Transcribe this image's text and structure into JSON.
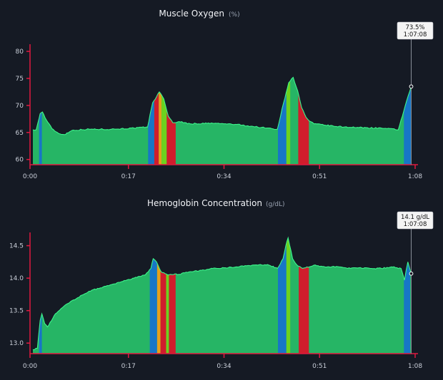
{
  "colors": {
    "background": "#151a24",
    "axis": "#e0193f",
    "fill_green": "#26b565",
    "line_green": "#3df58c",
    "band_blue": "#1776c7",
    "band_red": "#d01d2c",
    "band_orange": "#e6a01a",
    "band_lime": "#6dd21e",
    "tooltip_bg": "#f4f4f4",
    "cursor_line": "#8a8f99"
  },
  "chart_data": [
    {
      "type": "area",
      "title": "Muscle Oxygen",
      "unit": "(%)",
      "x_unit": "minutes",
      "xlim": [
        0,
        68
      ],
      "ylim": [
        59.3,
        80.8
      ],
      "x_ticks": [
        {
          "value": 0,
          "label": "0:00"
        },
        {
          "value": 17,
          "label": "0:17"
        },
        {
          "value": 34,
          "label": "0:34"
        },
        {
          "value": 51,
          "label": "0:51"
        },
        {
          "value": 68,
          "label": "1:08"
        }
      ],
      "y_ticks": [
        {
          "value": 60,
          "label": "60"
        },
        {
          "value": 65,
          "label": "65"
        },
        {
          "value": 70,
          "label": "70"
        },
        {
          "value": 75,
          "label": "75"
        },
        {
          "value": 80,
          "label": "80"
        }
      ],
      "x": [
        0,
        0.6,
        1.3,
        1.7,
        2.4,
        3.4,
        4.6,
        5.6,
        7,
        10,
        14,
        18,
        20.4,
        21.3,
        22.5,
        23.3,
        24.1,
        24.9,
        26,
        28,
        32,
        36,
        40,
        43.5,
        44.6,
        45.5,
        46.3,
        47.1,
        47.8,
        48.6,
        49.2,
        50,
        54,
        58,
        62,
        65,
        66.2,
        67.3
      ],
      "values": [
        65.5,
        65.5,
        68.5,
        68.8,
        67.3,
        65.7,
        64.8,
        64.6,
        65.4,
        65.6,
        65.6,
        65.8,
        66,
        70.5,
        72.5,
        71.2,
        68,
        66.8,
        67,
        66.6,
        66.7,
        66.5,
        66,
        65.6,
        70.5,
        74.2,
        75.2,
        72.7,
        69.6,
        67.8,
        67.1,
        66.6,
        66.1,
        65.9,
        65.8,
        65.5,
        69.8,
        73.5
      ],
      "bands": [
        {
          "x0": 1.1,
          "x1": 1.6,
          "color": "blue"
        },
        {
          "x0": 20.5,
          "x1": 21.6,
          "color": "blue"
        },
        {
          "x0": 21.6,
          "x1": 22.4,
          "color": "red"
        },
        {
          "x0": 22.4,
          "x1": 22.9,
          "color": "orange"
        },
        {
          "x0": 22.9,
          "x1": 23.8,
          "color": "lime"
        },
        {
          "x0": 23.8,
          "x1": 25.4,
          "color": "red"
        },
        {
          "x0": 43.6,
          "x1": 45.1,
          "color": "blue"
        },
        {
          "x0": 45.1,
          "x1": 45.8,
          "color": "lime"
        },
        {
          "x0": 45.8,
          "x1": 47.2,
          "color": "green"
        },
        {
          "x0": 47.2,
          "x1": 49.1,
          "color": "red"
        },
        {
          "x0": 66.0,
          "x1": 67.3,
          "color": "blue"
        }
      ],
      "cursor": {
        "x": 67.3,
        "y": 73.5,
        "value_label": "73.5%",
        "time_label": "1:07:08"
      }
    },
    {
      "type": "area",
      "title": "Hemoglobin Concentration",
      "unit": "(g/dL)",
      "x_unit": "minutes",
      "xlim": [
        0,
        68
      ],
      "ylim": [
        12.86,
        14.66
      ],
      "x_ticks": [
        {
          "value": 0,
          "label": "0:00"
        },
        {
          "value": 17,
          "label": "0:17"
        },
        {
          "value": 34,
          "label": "0:34"
        },
        {
          "value": 51,
          "label": "0:51"
        },
        {
          "value": 68,
          "label": "1:08"
        }
      ],
      "y_ticks": [
        {
          "value": 13.0,
          "label": "13.0"
        },
        {
          "value": 13.5,
          "label": "13.5"
        },
        {
          "value": 14.0,
          "label": "14.0"
        },
        {
          "value": 14.5,
          "label": "14.5"
        }
      ],
      "x": [
        0,
        0.8,
        1.3,
        1.6,
        2.1,
        2.6,
        4,
        6,
        8,
        10,
        12,
        14,
        16,
        18,
        20,
        21,
        21.4,
        22,
        22.8,
        24,
        26,
        28,
        30,
        32,
        34,
        36,
        38,
        40,
        42,
        43.5,
        44.5,
        45,
        45.4,
        46.2,
        47,
        48,
        50,
        52,
        54,
        56,
        58,
        60,
        62,
        64,
        65.5,
        66.1,
        66.7,
        67.3
      ],
      "values": [
        12.9,
        12.92,
        13.35,
        13.45,
        13.3,
        13.25,
        13.45,
        13.6,
        13.7,
        13.8,
        13.85,
        13.9,
        13.95,
        14.0,
        14.05,
        14.15,
        14.3,
        14.25,
        14.1,
        14.05,
        14.06,
        14.1,
        14.12,
        14.15,
        14.16,
        14.17,
        14.19,
        14.2,
        14.2,
        14.15,
        14.3,
        14.5,
        14.62,
        14.3,
        14.2,
        14.15,
        14.2,
        14.17,
        14.18,
        14.15,
        14.16,
        14.15,
        14.15,
        14.17,
        14.15,
        13.97,
        14.25,
        14.07
      ],
      "bands": [
        {
          "x0": 1.1,
          "x1": 1.6,
          "color": "blue"
        },
        {
          "x0": 20.8,
          "x1": 22.1,
          "color": "blue"
        },
        {
          "x0": 22.1,
          "x1": 22.7,
          "color": "orange"
        },
        {
          "x0": 22.7,
          "x1": 23.7,
          "color": "red"
        },
        {
          "x0": 23.7,
          "x1": 24.2,
          "color": "lime"
        },
        {
          "x0": 24.2,
          "x1": 25.4,
          "color": "red"
        },
        {
          "x0": 43.6,
          "x1": 45.1,
          "color": "blue"
        },
        {
          "x0": 45.1,
          "x1": 45.8,
          "color": "lime"
        },
        {
          "x0": 45.8,
          "x1": 47.3,
          "color": "green"
        },
        {
          "x0": 47.3,
          "x1": 49.1,
          "color": "red"
        },
        {
          "x0": 66.0,
          "x1": 67.1,
          "color": "blue"
        }
      ],
      "cursor": {
        "x": 67.3,
        "y": 14.07,
        "value_label": "14.1 g/dL",
        "time_label": "1:07:08"
      }
    }
  ]
}
